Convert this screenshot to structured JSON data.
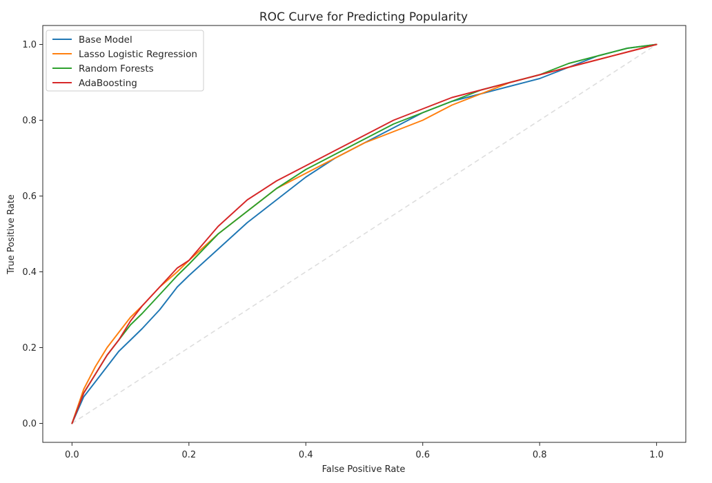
{
  "chart_data": {
    "type": "line",
    "title": "ROC Curve for Predicting Popularity",
    "xlabel": "False Positive Rate",
    "ylabel": "True Positive Rate",
    "xlim": [
      -0.05,
      1.05
    ],
    "ylim": [
      -0.05,
      1.05
    ],
    "xticks": [
      0.0,
      0.2,
      0.4,
      0.6,
      0.8,
      1.0
    ],
    "yticks": [
      0.0,
      0.2,
      0.4,
      0.6,
      0.8,
      1.0
    ],
    "xtick_labels": [
      "0.0",
      "0.2",
      "0.4",
      "0.6",
      "0.8",
      "1.0"
    ],
    "ytick_labels": [
      "0.0",
      "0.2",
      "0.4",
      "0.6",
      "0.8",
      "1.0"
    ],
    "grid": false,
    "legend_position": "top-left",
    "reference_line": {
      "x": [
        0,
        1
      ],
      "y": [
        0,
        1
      ],
      "color": "#dddddd",
      "style": "dashed"
    },
    "series": [
      {
        "name": "Base Model",
        "color": "#1f77b4",
        "x": [
          0,
          0.02,
          0.04,
          0.06,
          0.08,
          0.1,
          0.12,
          0.15,
          0.18,
          0.2,
          0.25,
          0.3,
          0.35,
          0.4,
          0.45,
          0.5,
          0.55,
          0.6,
          0.65,
          0.7,
          0.75,
          0.8,
          0.85,
          0.9,
          0.95,
          1.0
        ],
        "y": [
          0,
          0.07,
          0.11,
          0.15,
          0.19,
          0.22,
          0.25,
          0.3,
          0.36,
          0.39,
          0.46,
          0.53,
          0.59,
          0.65,
          0.7,
          0.74,
          0.78,
          0.82,
          0.85,
          0.87,
          0.89,
          0.91,
          0.94,
          0.97,
          0.99,
          1.0
        ]
      },
      {
        "name": "Lasso Logistic Regression",
        "color": "#ff7f0e",
        "x": [
          0,
          0.02,
          0.04,
          0.06,
          0.08,
          0.1,
          0.12,
          0.15,
          0.18,
          0.2,
          0.25,
          0.3,
          0.35,
          0.4,
          0.45,
          0.5,
          0.55,
          0.6,
          0.65,
          0.7,
          0.75,
          0.8,
          0.85,
          0.9,
          0.95,
          1.0
        ],
        "y": [
          0,
          0.09,
          0.15,
          0.2,
          0.24,
          0.28,
          0.31,
          0.36,
          0.4,
          0.43,
          0.5,
          0.56,
          0.62,
          0.66,
          0.7,
          0.74,
          0.77,
          0.8,
          0.84,
          0.87,
          0.9,
          0.92,
          0.94,
          0.96,
          0.98,
          1.0
        ]
      },
      {
        "name": "Random Forests",
        "color": "#2ca02c",
        "x": [
          0,
          0.02,
          0.04,
          0.06,
          0.08,
          0.1,
          0.12,
          0.15,
          0.18,
          0.2,
          0.25,
          0.3,
          0.35,
          0.4,
          0.45,
          0.5,
          0.55,
          0.6,
          0.65,
          0.7,
          0.75,
          0.8,
          0.85,
          0.9,
          0.95,
          1.0
        ],
        "y": [
          0,
          0.08,
          0.13,
          0.18,
          0.22,
          0.26,
          0.29,
          0.34,
          0.39,
          0.42,
          0.5,
          0.56,
          0.62,
          0.67,
          0.71,
          0.75,
          0.79,
          0.82,
          0.85,
          0.88,
          0.9,
          0.92,
          0.95,
          0.97,
          0.99,
          1.0
        ]
      },
      {
        "name": "AdaBoosting",
        "color": "#d62728",
        "x": [
          0,
          0.02,
          0.04,
          0.06,
          0.08,
          0.1,
          0.12,
          0.15,
          0.18,
          0.2,
          0.25,
          0.3,
          0.35,
          0.4,
          0.45,
          0.5,
          0.55,
          0.6,
          0.65,
          0.7,
          0.75,
          0.8,
          0.85,
          0.9,
          0.95,
          1.0
        ],
        "y": [
          0,
          0.08,
          0.13,
          0.18,
          0.22,
          0.27,
          0.31,
          0.36,
          0.41,
          0.43,
          0.52,
          0.59,
          0.64,
          0.68,
          0.72,
          0.76,
          0.8,
          0.83,
          0.86,
          0.88,
          0.9,
          0.92,
          0.94,
          0.96,
          0.98,
          1.0
        ]
      }
    ]
  }
}
